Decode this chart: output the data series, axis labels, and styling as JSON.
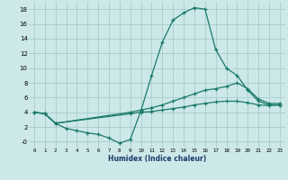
{
  "xlabel": "Humidex (Indice chaleur)",
  "bg_color": "#cce8e8",
  "grid_color": "#aacccc",
  "line_color": "#1a7a6a",
  "xlim": [
    -0.5,
    23.5
  ],
  "ylim": [
    -0.8,
    19.0
  ],
  "xticks": [
    0,
    1,
    2,
    3,
    4,
    5,
    6,
    7,
    8,
    9,
    10,
    11,
    12,
    13,
    14,
    15,
    16,
    17,
    18,
    19,
    20,
    21,
    22,
    23
  ],
  "yticks": [
    0,
    2,
    4,
    6,
    8,
    10,
    12,
    14,
    16,
    18
  ],
  "ytick_labels": [
    "0",
    "2",
    "4",
    "6",
    "8",
    "10",
    "12",
    "14",
    "16",
    "18"
  ],
  "line1_x": [
    0,
    1,
    2,
    3,
    4,
    5,
    6,
    7,
    8,
    9,
    10,
    11,
    12,
    13,
    14,
    15,
    16,
    17,
    18,
    19,
    20,
    21,
    22,
    23
  ],
  "line1_y": [
    4.0,
    3.8,
    2.5,
    1.8,
    1.5,
    1.2,
    1.0,
    0.5,
    -0.2,
    0.3,
    4.2,
    9.0,
    13.5,
    16.5,
    17.5,
    18.2,
    18.0,
    12.5,
    10.0,
    9.0,
    7.0,
    5.5,
    5.0,
    5.0
  ],
  "line2_x": [
    0,
    1,
    2,
    9,
    10,
    11,
    12,
    13,
    14,
    15,
    16,
    17,
    18,
    19,
    20,
    21,
    22,
    23
  ],
  "line2_y": [
    4.0,
    3.8,
    2.5,
    4.0,
    4.3,
    4.6,
    5.0,
    5.5,
    6.0,
    6.5,
    7.0,
    7.2,
    7.5,
    8.0,
    7.2,
    5.8,
    5.2,
    5.2
  ],
  "line3_x": [
    0,
    1,
    2,
    9,
    10,
    11,
    12,
    13,
    14,
    15,
    16,
    17,
    18,
    19,
    20,
    21,
    22,
    23
  ],
  "line3_y": [
    4.0,
    3.8,
    2.5,
    3.8,
    4.0,
    4.1,
    4.3,
    4.5,
    4.7,
    5.0,
    5.2,
    5.4,
    5.5,
    5.5,
    5.3,
    5.0,
    4.9,
    5.0
  ]
}
